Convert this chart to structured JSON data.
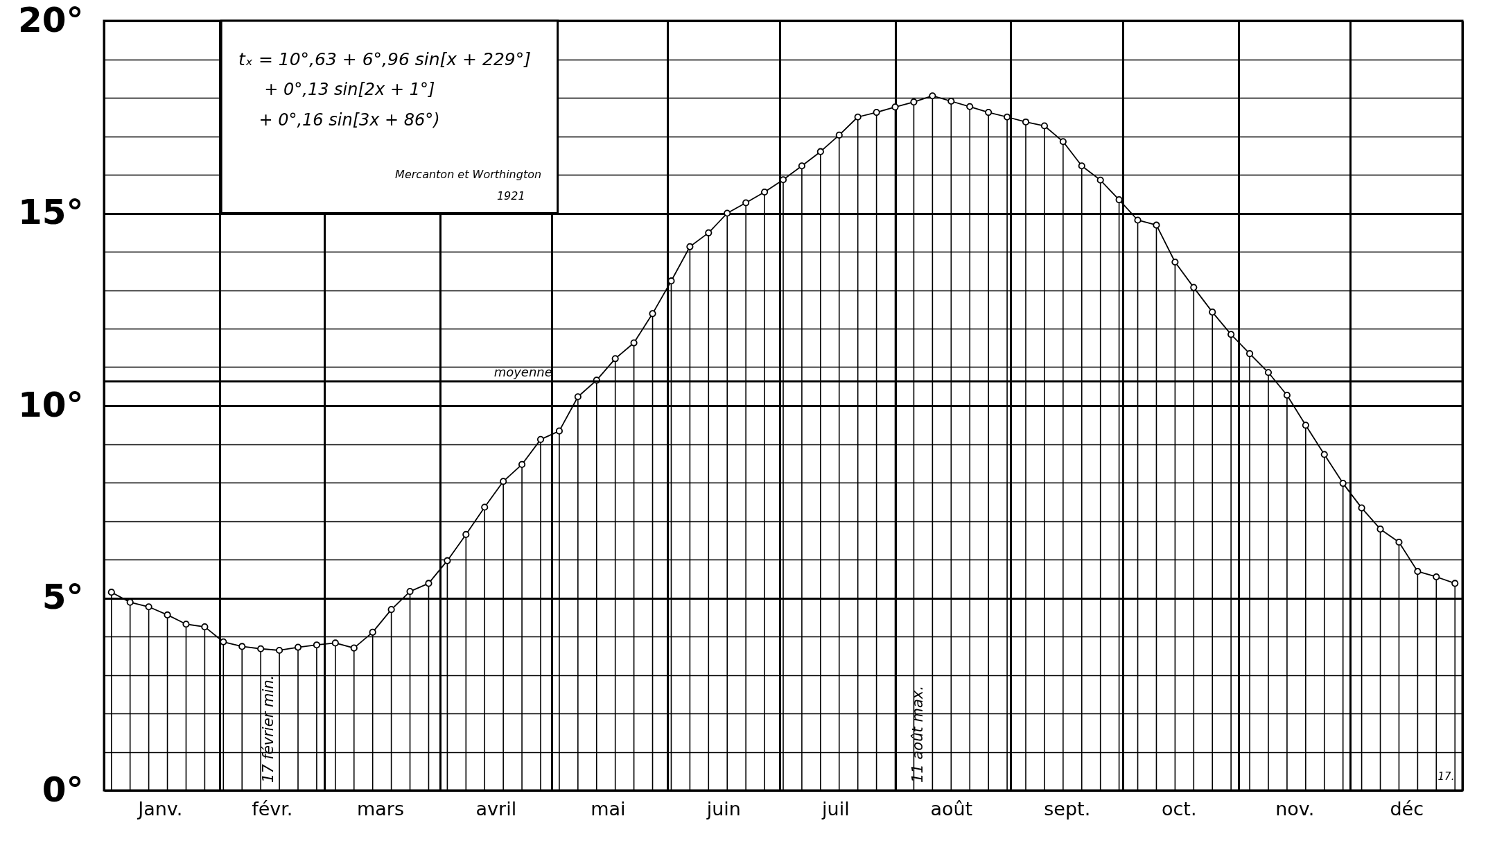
{
  "chart_data": {
    "type": "lollipop",
    "x": [
      "--01-03",
      "--01-08",
      "--01-13",
      "--01-18",
      "--01-23",
      "--01-28",
      "--02-02",
      "--02-07",
      "--02-12",
      "--02-17",
      "--02-22",
      "--02-27",
      "--03-04",
      "--03-09",
      "--03-14",
      "--03-19",
      "--03-24",
      "--03-29",
      "--04-03",
      "--04-08",
      "--04-13",
      "--04-18",
      "--04-23",
      "--04-28",
      "--05-03",
      "--05-08",
      "--05-13",
      "--05-18",
      "--05-23",
      "--05-28",
      "--06-02",
      "--06-07",
      "--06-12",
      "--06-17",
      "--06-22",
      "--06-27",
      "--07-02",
      "--07-07",
      "--07-12",
      "--07-17",
      "--07-22",
      "--07-27",
      "--08-01",
      "--08-06",
      "--08-11",
      "--08-16",
      "--08-21",
      "--08-26",
      "--08-31",
      "--09-05",
      "--09-10",
      "--09-15",
      "--09-20",
      "--09-25",
      "--09-30",
      "--10-05",
      "--10-10",
      "--10-15",
      "--10-20",
      "--10-25",
      "--10-30",
      "--11-04",
      "--11-09",
      "--11-14",
      "--11-19",
      "--11-24",
      "--11-29",
      "--12-04",
      "--12-09",
      "--12-14",
      "--12-19",
      "--12-24",
      "--12-29"
    ],
    "series": [
      {
        "color": "#000000",
        "values": [
          5.15,
          4.89,
          4.77,
          4.56,
          4.32,
          4.25,
          3.86,
          3.74,
          3.68,
          3.64,
          3.72,
          3.78,
          3.83,
          3.7,
          4.11,
          4.7,
          5.17,
          5.38,
          5.97,
          6.65,
          7.36,
          8.03,
          8.47,
          9.12,
          9.34,
          10.23,
          10.66,
          11.22,
          11.63,
          12.39,
          13.24,
          14.13,
          14.49,
          15.0,
          15.27,
          15.55,
          15.87,
          16.23,
          16.6,
          17.03,
          17.5,
          17.62,
          17.76,
          17.89,
          18.05,
          17.91,
          17.77,
          17.62,
          17.5,
          17.37,
          17.27,
          16.86,
          16.23,
          15.86,
          15.35,
          14.82,
          14.69,
          13.73,
          13.07,
          12.43,
          11.85,
          11.35,
          10.86,
          10.27,
          9.49,
          8.73,
          7.98,
          7.34,
          6.79,
          6.45,
          5.69,
          5.55,
          5.38
        ]
      },
      {
        "type": "line",
        "marker": "none",
        "color": "#000000",
        "values": [
          5.15,
          4.89,
          4.77,
          4.56,
          4.32,
          4.25,
          3.86,
          3.74,
          3.68,
          3.64,
          3.72,
          3.78,
          3.83,
          3.7,
          4.11,
          4.7,
          5.17,
          5.38,
          5.97,
          6.65,
          7.36,
          8.03,
          8.47,
          9.12,
          9.34,
          10.23,
          10.66,
          11.22,
          11.63,
          12.39,
          13.24,
          14.13,
          14.49,
          15.0,
          15.27,
          15.55,
          15.87,
          16.23,
          16.6,
          17.03,
          17.5,
          17.62,
          17.76,
          17.89,
          18.05,
          17.91,
          17.77,
          17.62,
          17.5,
          17.37,
          17.27,
          16.86,
          16.23,
          15.86,
          15.35,
          14.82,
          14.69,
          13.73,
          13.07,
          12.43,
          11.85,
          11.35,
          10.86,
          10.27,
          9.49,
          8.73,
          7.98,
          7.34,
          6.79,
          6.45,
          5.69,
          5.55,
          5.38
        ]
      }
    ],
    "xlim": [
      "--01-01",
      "--12-31"
    ],
    "xticks": [
      {
        "value": "--01-01",
        "label": null
      },
      {
        "value": "--01-16",
        "label": "Janv."
      },
      {
        "value": "--02-01",
        "label": null
      },
      {
        "value": "--02-15",
        "label": "févr."
      },
      {
        "value": "--03-01",
        "label": null
      },
      {
        "value": "--03-16",
        "label": "mars"
      },
      {
        "value": "--04-01",
        "label": null
      },
      {
        "value": "--04-16",
        "label": "avril"
      },
      {
        "value": "--05-01",
        "label": null
      },
      {
        "value": "--05-16",
        "label": "mai"
      },
      {
        "value": "--06-01",
        "label": null
      },
      {
        "value": "--06-16",
        "label": "juin"
      },
      {
        "value": "--07-01",
        "label": null
      },
      {
        "value": "--07-16",
        "label": "juil"
      },
      {
        "value": "--08-01",
        "label": null
      },
      {
        "value": "--08-16",
        "label": "août"
      },
      {
        "value": "--09-01",
        "label": null
      },
      {
        "value": "--09-16",
        "label": "sept."
      },
      {
        "value": "--10-01",
        "label": null
      },
      {
        "value": "--10-16",
        "label": "oct."
      },
      {
        "value": "--11-01",
        "label": null
      },
      {
        "value": "--11-16",
        "label": "nov."
      },
      {
        "value": "--12-01",
        "label": null
      },
      {
        "value": "--12-16",
        "label": "déc"
      },
      {
        "value": "--12-31",
        "label": null
      }
    ],
    "ylim": [
      0,
      20
    ],
    "yticks": [
      {
        "value": 0,
        "label": "0°"
      },
      {
        "value": 1,
        "label": null
      },
      {
        "value": 2,
        "label": null
      },
      {
        "value": 3,
        "label": null
      },
      {
        "value": 4,
        "label": null
      },
      {
        "value": 5,
        "label": "5°"
      },
      {
        "value": 6,
        "label": null
      },
      {
        "value": 7,
        "label": null
      },
      {
        "value": 8,
        "label": null
      },
      {
        "value": 9,
        "label": null
      },
      {
        "value": 10,
        "label": "10°"
      },
      {
        "value": 11,
        "label": null
      },
      {
        "value": 12,
        "label": null
      },
      {
        "value": 13,
        "label": null
      },
      {
        "value": 14,
        "label": null
      },
      {
        "value": 15,
        "label": "15°"
      },
      {
        "value": 16,
        "label": null
      },
      {
        "value": 17,
        "label": null
      },
      {
        "value": 18,
        "label": null
      },
      {
        "value": 19,
        "label": null
      },
      {
        "value": 20,
        "label": "20°"
      }
    ],
    "grid": true,
    "marker": "circle",
    "line_style": "solid",
    "ref_lines": [
      {
        "axis": "y",
        "value": 10.63,
        "label": "moyenne"
      }
    ],
    "annotations": [
      "tₓ = 10°,63 + 6°,96 sin[x + 229°]",
      "+ 0°,13 sin[2x + 1°]",
      "+ 0°,16 sin[3x + 86°)",
      "Mercanton et Worthington",
      "1921",
      "17.",
      "17 février min.",
      "11 août max."
    ]
  }
}
